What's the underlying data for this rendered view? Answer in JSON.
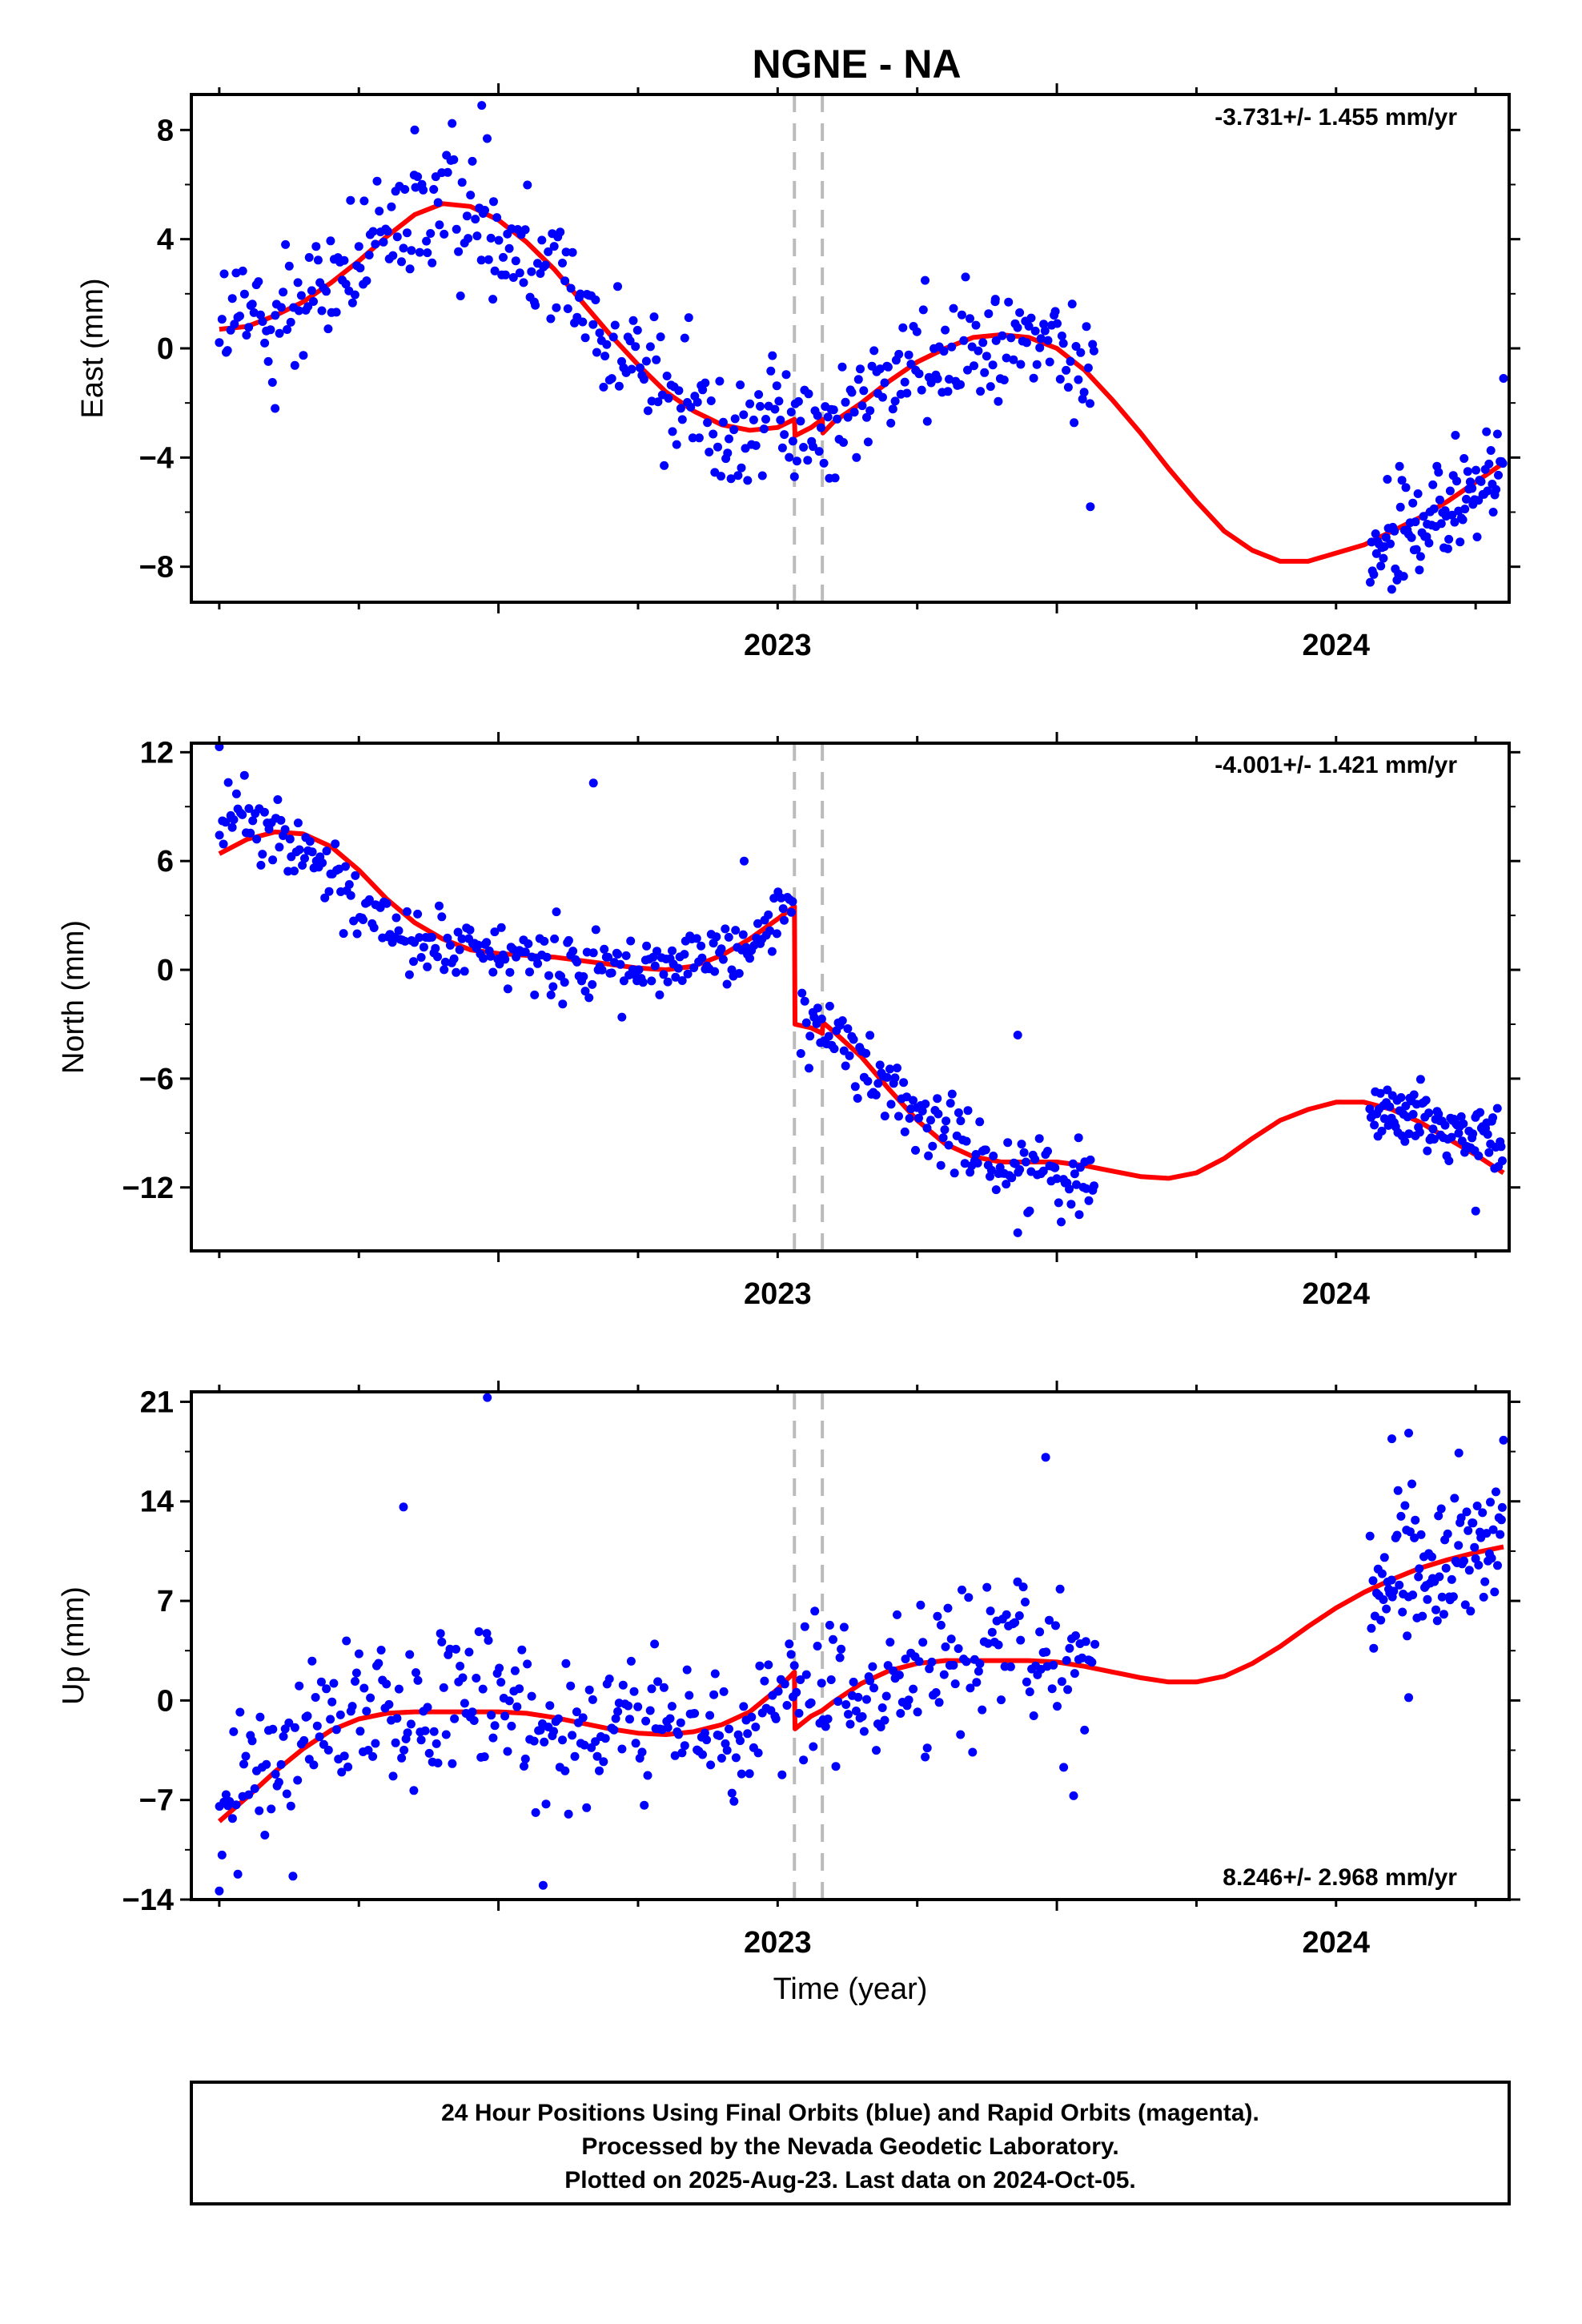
{
  "title": "NGNE - NA",
  "xlabel": "Time (year)",
  "footer": {
    "line1": "24 Hour Positions Using Final Orbits (blue) and Rapid Orbits (magenta).",
    "line2": "Processed by the Nevada Geodetic Laboratory.",
    "line3": "Plotted on 2025-Aug-23. Last data on 2024-Oct-05."
  },
  "colors": {
    "points": "#0000ff",
    "fit": "#ff0000",
    "offset_lines": "#bbbbbb",
    "frame": "#000000"
  },
  "chart_data": [
    {
      "type": "scatter",
      "component": "East",
      "ylabel": "East (mm)",
      "rate": "-3.731+/- 1.455 mm/yr",
      "rate_position": "top-right",
      "xlim": [
        2022.45,
        2024.81
      ],
      "ylim": [
        -9.3,
        9.3
      ],
      "yticks": [
        -8,
        -4,
        0,
        4,
        8
      ],
      "xticks": [
        2023,
        2024
      ],
      "offset_lines": [
        2023.53,
        2023.58
      ],
      "observations": [
        {
          "x_range": [
            2022.5,
            2024.07
          ],
          "knots": [
            [
              2022.5,
              0.7
            ],
            [
              2022.6,
              1.2
            ],
            [
              2022.7,
              2.4
            ],
            [
              2022.8,
              4
            ],
            [
              2022.9,
              5.3
            ],
            [
              2023.0,
              4.8
            ],
            [
              2023.1,
              2.9
            ],
            [
              2023.2,
              0.5
            ],
            [
              2023.3,
              -1.6
            ],
            [
              2023.4,
              -2.8
            ],
            [
              2023.53,
              -2.6
            ],
            [
              2023.55,
              -3.3
            ],
            [
              2023.6,
              -2.7
            ],
            [
              2023.7,
              -1.2
            ],
            [
              2023.8,
              0
            ],
            [
              2023.9,
              0.4
            ],
            [
              2024.0,
              0
            ],
            [
              2024.07,
              -1
            ]
          ],
          "scatter": 1.5,
          "n": 430
        },
        {
          "x_range": [
            2024.56,
            2024.8
          ],
          "knots": [
            [
              2024.56,
              -7.3
            ],
            [
              2024.65,
              -6.5
            ],
            [
              2024.8,
              -4.5
            ]
          ],
          "scatter": 1.3,
          "n": 100
        }
      ],
      "outliers": [
        [
          2022.97,
          8.9
        ],
        [
          2022.85,
          8.0
        ],
        [
          2022.99,
          1.8
        ],
        [
          2023.89,
          1.8
        ],
        [
          2024.06,
          -5.8
        ],
        [
          2024.8,
          -1.1
        ],
        [
          2023.53,
          -4.7
        ],
        [
          2022.6,
          -2.2
        ]
      ],
      "fit_knots": [
        [
          2022.5,
          0.7
        ],
        [
          2022.55,
          0.8
        ],
        [
          2022.6,
          1.2
        ],
        [
          2022.65,
          1.7
        ],
        [
          2022.7,
          2.4
        ],
        [
          2022.75,
          3.2
        ],
        [
          2022.8,
          4.1
        ],
        [
          2022.85,
          4.9
        ],
        [
          2022.9,
          5.3
        ],
        [
          2022.95,
          5.2
        ],
        [
          2023.0,
          4.7
        ],
        [
          2023.05,
          3.9
        ],
        [
          2023.1,
          2.9
        ],
        [
          2023.15,
          1.7
        ],
        [
          2023.2,
          0.5
        ],
        [
          2023.25,
          -0.6
        ],
        [
          2023.3,
          -1.6
        ],
        [
          2023.35,
          -2.3
        ],
        [
          2023.4,
          -2.8
        ],
        [
          2023.45,
          -3.0
        ],
        [
          2023.5,
          -2.9
        ],
        [
          2023.53,
          -2.6
        ],
        [
          2023.531,
          -3.2
        ],
        [
          2023.56,
          -2.9
        ],
        [
          2023.58,
          -2.6
        ],
        [
          2023.581,
          -3.1
        ],
        [
          2023.6,
          -2.7
        ],
        [
          2023.65,
          -2.0
        ],
        [
          2023.7,
          -1.2
        ],
        [
          2023.75,
          -0.5
        ],
        [
          2023.8,
          0.0
        ],
        [
          2023.85,
          0.4
        ],
        [
          2023.9,
          0.5
        ],
        [
          2023.95,
          0.4
        ],
        [
          2024.0,
          0.0
        ],
        [
          2024.05,
          -0.8
        ],
        [
          2024.1,
          -1.9
        ],
        [
          2024.15,
          -3.1
        ],
        [
          2024.2,
          -4.4
        ],
        [
          2024.25,
          -5.6
        ],
        [
          2024.3,
          -6.7
        ],
        [
          2024.35,
          -7.4
        ],
        [
          2024.4,
          -7.8
        ],
        [
          2024.45,
          -7.8
        ],
        [
          2024.5,
          -7.5
        ],
        [
          2024.55,
          -7.2
        ],
        [
          2024.6,
          -6.7
        ],
        [
          2024.65,
          -6.2
        ],
        [
          2024.7,
          -5.6
        ],
        [
          2024.75,
          -4.9
        ],
        [
          2024.8,
          -4.2
        ]
      ]
    },
    {
      "type": "scatter",
      "component": "North",
      "ylabel": "North (mm)",
      "rate": "-4.001+/- 1.421 mm/yr",
      "rate_position": "top-right",
      "xlim": [
        2022.45,
        2024.81
      ],
      "ylim": [
        -15.5,
        12.5
      ],
      "yticks": [
        -12,
        -6,
        0,
        6,
        12
      ],
      "xticks": [
        2023,
        2024
      ],
      "offset_lines": [
        2023.53,
        2023.58
      ],
      "observations": [
        {
          "x_range": [
            2022.5,
            2023.53
          ],
          "knots": [
            [
              2022.5,
              8.8
            ],
            [
              2022.6,
              7.5
            ],
            [
              2022.7,
              5
            ],
            [
              2022.8,
              2.5
            ],
            [
              2022.9,
              1
            ],
            [
              2023.1,
              0.5
            ],
            [
              2023.3,
              0
            ],
            [
              2023.45,
              1.5
            ],
            [
              2023.53,
              3.5
            ]
          ],
          "scatter": 1.2,
          "n": 280
        },
        {
          "x_range": [
            2023.54,
            2024.07
          ],
          "knots": [
            [
              2023.54,
              -3
            ],
            [
              2023.6,
              -3.5
            ],
            [
              2023.7,
              -6.5
            ],
            [
              2023.8,
              -9
            ],
            [
              2023.9,
              -10.8
            ],
            [
              2024.07,
              -11.2
            ]
          ],
          "scatter": 1.2,
          "n": 150
        },
        {
          "x_range": [
            2024.56,
            2024.8
          ],
          "knots": [
            [
              2024.56,
              -7.8
            ],
            [
              2024.65,
              -8
            ],
            [
              2024.8,
              -10
            ]
          ],
          "scatter": 1.0,
          "n": 100
        }
      ],
      "outliers": [
        [
          2022.5,
          12.3
        ],
        [
          2023.17,
          10.3
        ],
        [
          2023.44,
          6
        ],
        [
          2023.93,
          -3.6
        ],
        [
          2024.75,
          -13.3
        ],
        [
          2024.04,
          -13.5
        ],
        [
          2023.93,
          -14.5
        ]
      ],
      "fit_knots": [
        [
          2022.5,
          6.4
        ],
        [
          2022.55,
          7.2
        ],
        [
          2022.6,
          7.6
        ],
        [
          2022.65,
          7.5
        ],
        [
          2022.7,
          6.8
        ],
        [
          2022.75,
          5.5
        ],
        [
          2022.8,
          3.9
        ],
        [
          2022.85,
          2.6
        ],
        [
          2022.9,
          1.7
        ],
        [
          2022.95,
          1.1
        ],
        [
          2023.0,
          0.9
        ],
        [
          2023.05,
          0.8
        ],
        [
          2023.1,
          0.7
        ],
        [
          2023.15,
          0.5
        ],
        [
          2023.2,
          0.3
        ],
        [
          2023.25,
          0.1
        ],
        [
          2023.3,
          0.0
        ],
        [
          2023.35,
          0.2
        ],
        [
          2023.4,
          0.8
        ],
        [
          2023.45,
          1.7
        ],
        [
          2023.5,
          2.8
        ],
        [
          2023.53,
          3.5
        ],
        [
          2023.531,
          -3.0
        ],
        [
          2023.56,
          -3.2
        ],
        [
          2023.58,
          -3.5
        ],
        [
          2023.581,
          -2.9
        ],
        [
          2023.6,
          -3.4
        ],
        [
          2023.65,
          -4.8
        ],
        [
          2023.7,
          -6.6
        ],
        [
          2023.75,
          -8.3
        ],
        [
          2023.8,
          -9.6
        ],
        [
          2023.85,
          -10.3
        ],
        [
          2023.9,
          -10.6
        ],
        [
          2023.95,
          -10.6
        ],
        [
          2024.0,
          -10.6
        ],
        [
          2024.05,
          -10.8
        ],
        [
          2024.1,
          -11.1
        ],
        [
          2024.15,
          -11.4
        ],
        [
          2024.2,
          -11.5
        ],
        [
          2024.25,
          -11.2
        ],
        [
          2024.3,
          -10.4
        ],
        [
          2024.35,
          -9.3
        ],
        [
          2024.4,
          -8.3
        ],
        [
          2024.45,
          -7.7
        ],
        [
          2024.5,
          -7.3
        ],
        [
          2024.55,
          -7.3
        ],
        [
          2024.6,
          -7.7
        ],
        [
          2024.65,
          -8.4
        ],
        [
          2024.7,
          -9.3
        ],
        [
          2024.75,
          -10.2
        ],
        [
          2024.8,
          -11.2
        ]
      ]
    },
    {
      "type": "scatter",
      "component": "Up",
      "ylabel": "Up (mm)",
      "rate": "8.246+/- 2.968 mm/yr",
      "rate_position": "bottom-right",
      "xlim": [
        2022.45,
        2024.81
      ],
      "ylim": [
        -14,
        21.7
      ],
      "yticks": [
        -14,
        -7,
        0,
        7,
        14,
        21
      ],
      "xticks": [
        2023,
        2024
      ],
      "offset_lines": [
        2023.53,
        2023.58
      ],
      "observations": [
        {
          "x_range": [
            2022.5,
            2024.07
          ],
          "knots": [
            [
              2022.5,
              -8.5
            ],
            [
              2022.6,
              -4
            ],
            [
              2022.7,
              -1.5
            ],
            [
              2022.8,
              -1
            ],
            [
              2023.0,
              -1
            ],
            [
              2023.2,
              -2
            ],
            [
              2023.35,
              -2.5
            ],
            [
              2023.5,
              0
            ],
            [
              2023.53,
              1.5
            ],
            [
              2023.6,
              -0.5
            ],
            [
              2023.75,
              2.5
            ],
            [
              2023.9,
              2.8
            ],
            [
              2024.07,
              2.6
            ]
          ],
          "scatter": 3.2,
          "n": 430
        },
        {
          "x_range": [
            2024.56,
            2024.8
          ],
          "knots": [
            [
              2024.56,
              8
            ],
            [
              2024.68,
              9.5
            ],
            [
              2024.8,
              11
            ]
          ],
          "scatter": 3.0,
          "n": 100
        }
      ],
      "outliers": [
        [
          2022.98,
          21.3
        ],
        [
          2022.83,
          13.6
        ],
        [
          2024.63,
          18.8
        ],
        [
          2024.6,
          18.4
        ],
        [
          2024.72,
          17.4
        ],
        [
          2024.8,
          18.3
        ],
        [
          2023.98,
          17.1
        ],
        [
          2024.63,
          0.2
        ],
        [
          2022.5,
          -13.4
        ],
        [
          2023.08,
          -13
        ],
        [
          2024.03,
          -6.7
        ]
      ],
      "fit_knots": [
        [
          2022.5,
          -8.5
        ],
        [
          2022.55,
          -6.8
        ],
        [
          2022.6,
          -5.0
        ],
        [
          2022.65,
          -3.4
        ],
        [
          2022.7,
          -2.1
        ],
        [
          2022.75,
          -1.3
        ],
        [
          2022.8,
          -0.9
        ],
        [
          2022.85,
          -0.8
        ],
        [
          2022.9,
          -0.8
        ],
        [
          2022.95,
          -0.8
        ],
        [
          2023.0,
          -0.8
        ],
        [
          2023.05,
          -0.9
        ],
        [
          2023.1,
          -1.2
        ],
        [
          2023.15,
          -1.6
        ],
        [
          2023.2,
          -2.0
        ],
        [
          2023.25,
          -2.3
        ],
        [
          2023.3,
          -2.4
        ],
        [
          2023.35,
          -2.2
        ],
        [
          2023.4,
          -1.7
        ],
        [
          2023.45,
          -0.8
        ],
        [
          2023.5,
          0.8
        ],
        [
          2023.53,
          2.0
        ],
        [
          2023.531,
          -2.0
        ],
        [
          2023.56,
          -1.1
        ],
        [
          2023.58,
          -0.7
        ],
        [
          2023.6,
          -0.1
        ],
        [
          2023.65,
          1.2
        ],
        [
          2023.7,
          2.1
        ],
        [
          2023.75,
          2.6
        ],
        [
          2023.8,
          2.8
        ],
        [
          2023.85,
          2.8
        ],
        [
          2023.9,
          2.8
        ],
        [
          2023.95,
          2.8
        ],
        [
          2024.0,
          2.7
        ],
        [
          2024.05,
          2.4
        ],
        [
          2024.1,
          2.0
        ],
        [
          2024.15,
          1.6
        ],
        [
          2024.2,
          1.3
        ],
        [
          2024.25,
          1.3
        ],
        [
          2024.3,
          1.7
        ],
        [
          2024.35,
          2.6
        ],
        [
          2024.4,
          3.8
        ],
        [
          2024.45,
          5.2
        ],
        [
          2024.5,
          6.5
        ],
        [
          2024.55,
          7.6
        ],
        [
          2024.6,
          8.5
        ],
        [
          2024.65,
          9.3
        ],
        [
          2024.7,
          9.9
        ],
        [
          2024.75,
          10.4
        ],
        [
          2024.8,
          10.8
        ]
      ]
    }
  ]
}
